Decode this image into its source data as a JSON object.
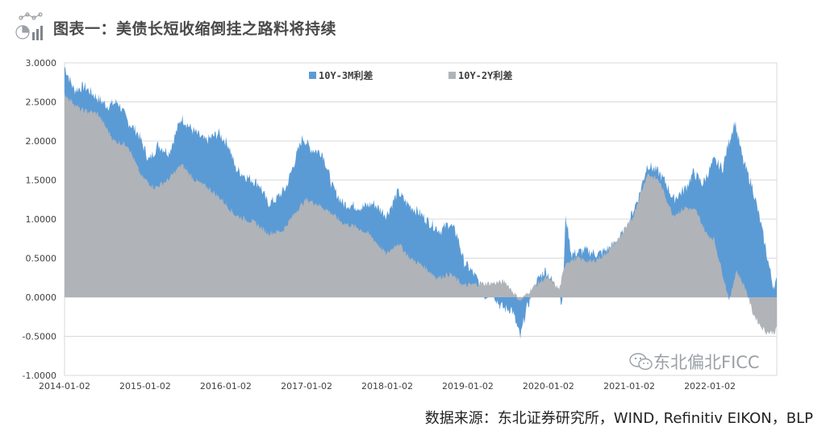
{
  "header": {
    "title": "图表一：美债长短收缩倒挂之路料将持续",
    "icon": "chart-logo-icon"
  },
  "watermark": {
    "text": "东北偏北FICC",
    "icon": "wechat-icon"
  },
  "source": "数据来源：东北证券研究所，WIND, Refinitiv EIKON，BLP",
  "chart_data": {
    "type": "area",
    "title": "",
    "xlabel": "",
    "ylabel": "",
    "ylim": [
      -1.0,
      3.0
    ],
    "yticks": [
      "3.0000",
      "2.5000",
      "2.0000",
      "1.5000",
      "1.0000",
      "0.5000",
      "0.0000",
      "-0.5000",
      "-1.0000"
    ],
    "ytick_values": [
      3.0,
      2.5,
      2.0,
      1.5,
      1.0,
      0.5,
      0.0,
      -0.5,
      -1.0
    ],
    "xticks": [
      "2014-01-02",
      "2015-01-02",
      "2016-01-02",
      "2017-01-02",
      "2018-01-02",
      "2019-01-02",
      "2020-01-02",
      "2021-01-02",
      "2022-01-02"
    ],
    "x_domain": [
      "2014-01-02",
      "2022-11-01"
    ],
    "grid": "horizontal",
    "legend_position": "top",
    "colors": {
      "s1": "#5b9bd5",
      "s2": "#b0b3b8",
      "axis": "#d9d9d9",
      "tick": "#404040"
    },
    "series": [
      {
        "name": "10Y-3M利差",
        "points": [
          [
            "2014-01-02",
            2.95
          ],
          [
            "2014-02-15",
            2.65
          ],
          [
            "2014-04-01",
            2.7
          ],
          [
            "2014-06-01",
            2.55
          ],
          [
            "2014-07-15",
            2.45
          ],
          [
            "2014-09-01",
            2.5
          ],
          [
            "2014-10-15",
            2.25
          ],
          [
            "2014-12-01",
            2.1
          ],
          [
            "2015-01-20",
            1.75
          ],
          [
            "2015-03-01",
            1.95
          ],
          [
            "2015-04-20",
            1.85
          ],
          [
            "2015-06-15",
            2.3
          ],
          [
            "2015-08-01",
            2.15
          ],
          [
            "2015-10-01",
            2.0
          ],
          [
            "2015-12-01",
            2.1
          ],
          [
            "2016-01-15",
            1.95
          ],
          [
            "2016-02-15",
            1.65
          ],
          [
            "2016-04-01",
            1.55
          ],
          [
            "2016-06-01",
            1.45
          ],
          [
            "2016-07-10",
            1.2
          ],
          [
            "2016-08-15",
            1.25
          ],
          [
            "2016-10-01",
            1.4
          ],
          [
            "2016-11-10",
            1.75
          ],
          [
            "2016-12-15",
            2.05
          ],
          [
            "2017-01-20",
            1.9
          ],
          [
            "2017-03-15",
            1.85
          ],
          [
            "2017-05-01",
            1.4
          ],
          [
            "2017-06-15",
            1.2
          ],
          [
            "2017-09-10",
            1.15
          ],
          [
            "2017-11-01",
            1.2
          ],
          [
            "2017-12-30",
            1.05
          ],
          [
            "2018-02-20",
            1.35
          ],
          [
            "2018-04-01",
            1.2
          ],
          [
            "2018-05-20",
            1.1
          ],
          [
            "2018-07-15",
            0.95
          ],
          [
            "2018-09-01",
            0.85
          ],
          [
            "2018-10-10",
            0.95
          ],
          [
            "2018-11-15",
            0.8
          ],
          [
            "2018-12-15",
            0.45
          ],
          [
            "2019-01-15",
            0.35
          ],
          [
            "2019-02-20",
            0.2
          ],
          [
            "2019-03-22",
            0.0
          ],
          [
            "2019-04-20",
            0.1
          ],
          [
            "2019-05-25",
            -0.1
          ],
          [
            "2019-06-20",
            -0.15
          ],
          [
            "2019-07-20",
            -0.15
          ],
          [
            "2019-08-28",
            -0.52
          ],
          [
            "2019-09-20",
            -0.2
          ],
          [
            "2019-10-20",
            0.05
          ],
          [
            "2019-11-20",
            0.25
          ],
          [
            "2019-12-20",
            0.35
          ],
          [
            "2020-01-20",
            0.2
          ],
          [
            "2020-02-20",
            0.05
          ],
          [
            "2020-03-05",
            -0.1
          ],
          [
            "2020-03-20",
            1.05
          ],
          [
            "2020-04-15",
            0.55
          ],
          [
            "2020-06-15",
            0.6
          ],
          [
            "2020-08-15",
            0.55
          ],
          [
            "2020-10-15",
            0.65
          ],
          [
            "2020-12-15",
            0.85
          ],
          [
            "2021-02-15",
            1.3
          ],
          [
            "2021-03-25",
            1.7
          ],
          [
            "2021-05-15",
            1.6
          ],
          [
            "2021-06-20",
            1.45
          ],
          [
            "2021-07-20",
            1.25
          ],
          [
            "2021-09-15",
            1.4
          ],
          [
            "2021-10-20",
            1.6
          ],
          [
            "2021-12-01",
            1.45
          ],
          [
            "2022-01-20",
            1.75
          ],
          [
            "2022-03-01",
            1.65
          ],
          [
            "2022-03-25",
            1.95
          ],
          [
            "2022-04-25",
            2.25
          ],
          [
            "2022-06-01",
            1.75
          ],
          [
            "2022-07-15",
            1.4
          ],
          [
            "2022-08-20",
            0.95
          ],
          [
            "2022-09-20",
            0.5
          ],
          [
            "2022-10-15",
            0.15
          ],
          [
            "2022-11-01",
            0.2
          ]
        ]
      },
      {
        "name": "10Y-2Y利差",
        "points": [
          [
            "2014-01-02",
            2.6
          ],
          [
            "2014-03-15",
            2.4
          ],
          [
            "2014-06-01",
            2.35
          ],
          [
            "2014-08-15",
            2.0
          ],
          [
            "2014-10-15",
            1.95
          ],
          [
            "2014-12-15",
            1.55
          ],
          [
            "2015-02-15",
            1.4
          ],
          [
            "2015-04-15",
            1.5
          ],
          [
            "2015-06-15",
            1.7
          ],
          [
            "2015-08-15",
            1.5
          ],
          [
            "2015-10-15",
            1.4
          ],
          [
            "2015-12-15",
            1.25
          ],
          [
            "2016-02-15",
            1.05
          ],
          [
            "2016-05-15",
            0.95
          ],
          [
            "2016-07-10",
            0.82
          ],
          [
            "2016-09-15",
            0.85
          ],
          [
            "2016-11-15",
            1.1
          ],
          [
            "2016-12-30",
            1.25
          ],
          [
            "2017-02-15",
            1.2
          ],
          [
            "2017-04-15",
            1.1
          ],
          [
            "2017-06-15",
            0.95
          ],
          [
            "2017-08-15",
            0.9
          ],
          [
            "2017-10-15",
            0.8
          ],
          [
            "2017-12-30",
            0.55
          ],
          [
            "2018-02-20",
            0.7
          ],
          [
            "2018-04-15",
            0.5
          ],
          [
            "2018-06-15",
            0.4
          ],
          [
            "2018-08-15",
            0.25
          ],
          [
            "2018-10-15",
            0.3
          ],
          [
            "2018-12-15",
            0.15
          ],
          [
            "2019-02-20",
            0.17
          ],
          [
            "2019-04-20",
            0.18
          ],
          [
            "2019-06-20",
            0.2
          ],
          [
            "2019-08-28",
            -0.05
          ],
          [
            "2019-10-20",
            0.12
          ],
          [
            "2019-12-20",
            0.25
          ],
          [
            "2020-01-20",
            0.2
          ],
          [
            "2020-02-20",
            0.1
          ],
          [
            "2020-03-20",
            0.45
          ],
          [
            "2020-05-15",
            0.5
          ],
          [
            "2020-07-15",
            0.45
          ],
          [
            "2020-09-15",
            0.55
          ],
          [
            "2020-11-15",
            0.75
          ],
          [
            "2021-01-15",
            1.0
          ],
          [
            "2021-03-25",
            1.58
          ],
          [
            "2021-05-15",
            1.5
          ],
          [
            "2021-07-20",
            1.05
          ],
          [
            "2021-09-15",
            1.15
          ],
          [
            "2021-11-01",
            1.1
          ],
          [
            "2021-12-20",
            0.8
          ],
          [
            "2022-01-20",
            0.75
          ],
          [
            "2022-02-20",
            0.4
          ],
          [
            "2022-04-01",
            -0.05
          ],
          [
            "2022-05-01",
            0.35
          ],
          [
            "2022-06-15",
            0.1
          ],
          [
            "2022-07-15",
            -0.2
          ],
          [
            "2022-08-15",
            -0.35
          ],
          [
            "2022-09-15",
            -0.45
          ],
          [
            "2022-10-20",
            -0.45
          ],
          [
            "2022-11-01",
            -0.4
          ]
        ]
      }
    ]
  }
}
